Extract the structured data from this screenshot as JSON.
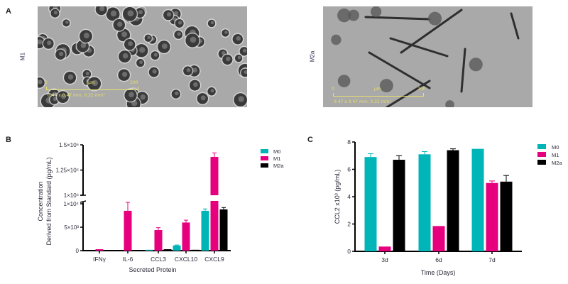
{
  "panels": {
    "A": {
      "letter": "A",
      "images": [
        {
          "label": "M1",
          "scale_start": "0",
          "scale_unit": "μm",
          "scale_end": "200",
          "scale_info": "0.47 x 0.47 mm, 0.22 mm²"
        },
        {
          "label": "M2a",
          "scale_start": "0",
          "scale_unit": "μm",
          "scale_end": "200",
          "scale_info": "0.47 x 0.47 mm, 0.22 mm²"
        }
      ]
    },
    "B": {
      "letter": "B"
    },
    "C": {
      "letter": "C"
    }
  },
  "colors": {
    "M0": "#00b5b8",
    "M1": "#e6007e",
    "M2a": "#000000",
    "axis": "#000000",
    "text": "#2b2b3a",
    "micro_bg": "#a9a9a9"
  },
  "chart_data": [
    {
      "id": "B",
      "type": "bar",
      "title": "",
      "xlabel": "Secreted Protein",
      "ylabel": "Concentration\nDerived from Standard (pg/mL)",
      "ylabel_lines": [
        "Concentration",
        "Derived from Standard (pg/mL)"
      ],
      "categories": [
        "IFNγ",
        "IL-6",
        "CCL3",
        "CXCL10",
        "CXCL9"
      ],
      "broken_axis": {
        "lower": {
          "range": [
            0,
            10000
          ],
          "ticks": [
            "0",
            "5×10³",
            "1×10⁴"
          ],
          "tick_values": [
            0,
            5000,
            10000
          ]
        },
        "upper": {
          "range": [
            1000000,
            1500000
          ],
          "ticks": [
            "1×10⁶",
            "1.25×10⁶",
            "1.5×10⁶"
          ],
          "tick_values": [
            1000000,
            1250000,
            1500000
          ]
        }
      },
      "legend": [
        "M0",
        "M1",
        "M2a"
      ],
      "legend_position": "right",
      "grid": false,
      "series": [
        {
          "name": "M0",
          "values": [
            0,
            0,
            30,
            1100,
            8500
          ],
          "errors": [
            0,
            0,
            0,
            100,
            400
          ]
        },
        {
          "name": "M1",
          "values": [
            300,
            8500,
            4400,
            6000,
            1380000
          ],
          "errors": [
            100,
            1800,
            500,
            500,
            40000
          ]
        },
        {
          "name": "M2a",
          "values": [
            0,
            0,
            300,
            100,
            8800
          ],
          "errors": [
            0,
            0,
            100,
            50,
            400
          ]
        }
      ]
    },
    {
      "id": "C",
      "type": "bar",
      "title": "",
      "xlabel": "Time (Days)",
      "ylabel": "CCL2 x10³ (pg/mL)",
      "categories": [
        "3d",
        "6d",
        "7d"
      ],
      "ylim": [
        0,
        8
      ],
      "yticks": [
        0,
        2,
        4,
        6,
        8
      ],
      "legend": [
        "M0",
        "M1",
        "M2a"
      ],
      "legend_position": "right",
      "grid": false,
      "series": [
        {
          "name": "M0",
          "values": [
            6.9,
            7.1,
            7.5
          ],
          "errors": [
            0.25,
            0.2,
            0.0
          ]
        },
        {
          "name": "M1",
          "values": [
            0.35,
            1.85,
            5.0
          ],
          "errors": [
            0.0,
            0.0,
            0.15
          ]
        },
        {
          "name": "M2a",
          "values": [
            6.7,
            7.4,
            5.1
          ],
          "errors": [
            0.3,
            0.1,
            0.45
          ]
        }
      ]
    }
  ]
}
